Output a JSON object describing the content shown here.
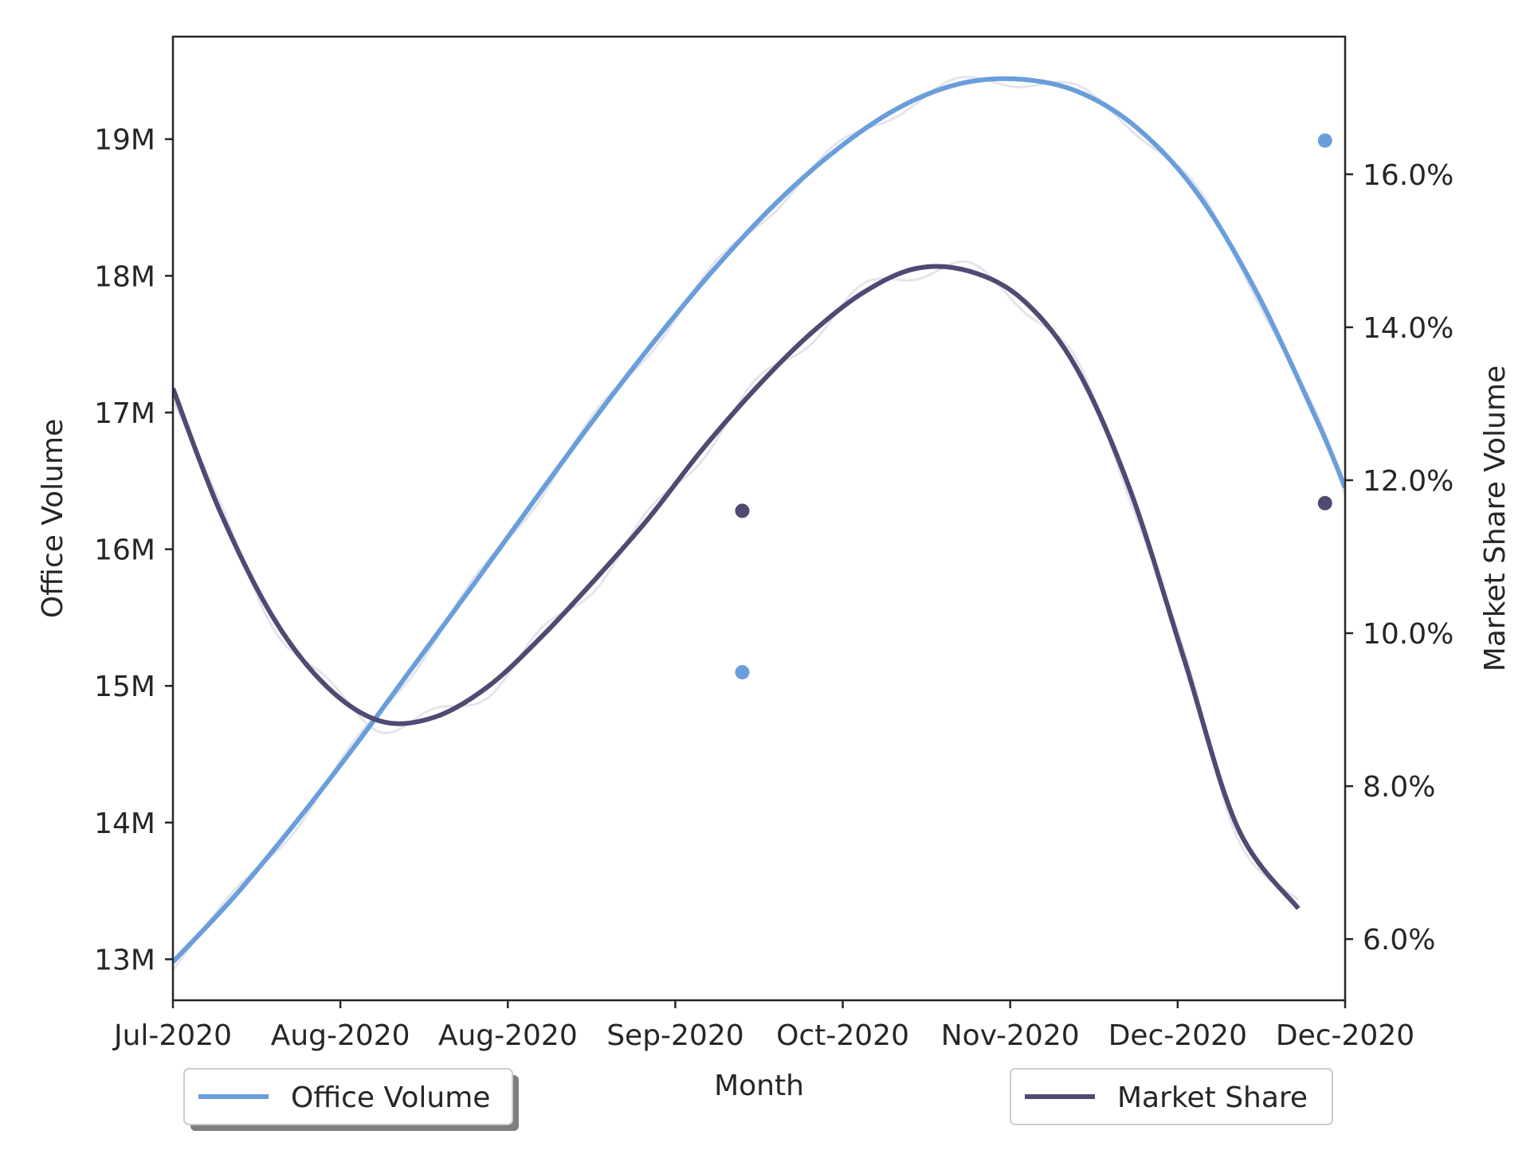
{
  "chart_data": {
    "type": "line",
    "title": "",
    "xlabel": "Month",
    "ylabel_left": "Office Volume",
    "ylabel_right": "Market Share Volume",
    "x_ticks": [
      "Jul-2020",
      "Aug-2020",
      "Aug-2020",
      "Sep-2020",
      "Oct-2020",
      "Nov-2020",
      "Dec-2020",
      "Dec-2020"
    ],
    "x_range": [
      "2020-07-01",
      "2020-12-23"
    ],
    "ylim_left": [
      12700000,
      19750000
    ],
    "ylim_right": [
      0.052,
      0.178
    ],
    "y_ticks_left": [
      {
        "value": 13000000,
        "label": "13M"
      },
      {
        "value": 14000000,
        "label": "14M"
      },
      {
        "value": 15000000,
        "label": "15M"
      },
      {
        "value": 16000000,
        "label": "16M"
      },
      {
        "value": 17000000,
        "label": "17M"
      },
      {
        "value": 18000000,
        "label": "18M"
      },
      {
        "value": 19000000,
        "label": "19M"
      }
    ],
    "y_ticks_right": [
      {
        "value": 0.06,
        "label": "6.0%"
      },
      {
        "value": 0.08,
        "label": "8.0%"
      },
      {
        "value": 0.1,
        "label": "10.0%"
      },
      {
        "value": 0.12,
        "label": "12.0%"
      },
      {
        "value": 0.14,
        "label": "14.0%"
      },
      {
        "value": 0.16,
        "label": "16.0%"
      }
    ],
    "grid": false,
    "series": [
      {
        "name": "Office Volume",
        "axis": "left",
        "color": "#6a9edb",
        "x": [
          "2020-07-01",
          "2020-07-10",
          "2020-07-19",
          "2020-07-28",
          "2020-08-06",
          "2020-08-15",
          "2020-08-24",
          "2020-09-02",
          "2020-09-11",
          "2020-09-20",
          "2020-09-29",
          "2020-10-08",
          "2020-10-17",
          "2020-10-26",
          "2020-11-04",
          "2020-11-13",
          "2020-11-22",
          "2020-12-01",
          "2020-12-10",
          "2020-12-19",
          "2020-12-23"
        ],
        "y": [
          12980000,
          13450000,
          13980000,
          14550000,
          15150000,
          15750000,
          16360000,
          16960000,
          17530000,
          18060000,
          18530000,
          18920000,
          19220000,
          19400000,
          19440000,
          19350000,
          19080000,
          18600000,
          17860000,
          16920000,
          16450000
        ]
      },
      {
        "name": "Market Share",
        "axis": "right",
        "color": "#4f4a72",
        "x": [
          "2020-07-01",
          "2020-07-08",
          "2020-07-16",
          "2020-07-24",
          "2020-08-01",
          "2020-08-09",
          "2020-08-17",
          "2020-08-25",
          "2020-09-02",
          "2020-09-10",
          "2020-09-18",
          "2020-09-26",
          "2020-10-04",
          "2020-10-12",
          "2020-10-20",
          "2020-10-28",
          "2020-11-05",
          "2020-11-13",
          "2020-11-21",
          "2020-11-29",
          "2020-12-07",
          "2020-12-16"
        ],
        "y": [
          0.132,
          0.116,
          0.102,
          0.093,
          0.0885,
          0.089,
          0.093,
          0.0995,
          0.107,
          0.115,
          0.124,
          0.132,
          0.139,
          0.1445,
          0.1477,
          0.1473,
          0.1435,
          0.1345,
          0.1185,
          0.0965,
          0.0745,
          0.064
        ]
      }
    ],
    "points": [
      {
        "series": "Office Volume",
        "axis": "left",
        "x": "2020-09-24",
        "y": 15100000,
        "color": "#6a9edb"
      },
      {
        "series": "Office Volume",
        "axis": "left",
        "x": "2020-12-20",
        "y": 18990000,
        "color": "#6a9edb"
      },
      {
        "series": "Market Share",
        "axis": "right",
        "x": "2020-09-24",
        "y": 0.116,
        "color": "#4f4a72"
      },
      {
        "series": "Market Share",
        "axis": "right",
        "x": "2020-12-20",
        "y": 0.117,
        "color": "#4f4a72"
      }
    ],
    "legends": [
      {
        "label": "Office Volume",
        "color": "#6a9edb",
        "placement": "bottom-left"
      },
      {
        "label": "Market Share",
        "color": "#4f4a72",
        "placement": "bottom-right"
      }
    ]
  }
}
